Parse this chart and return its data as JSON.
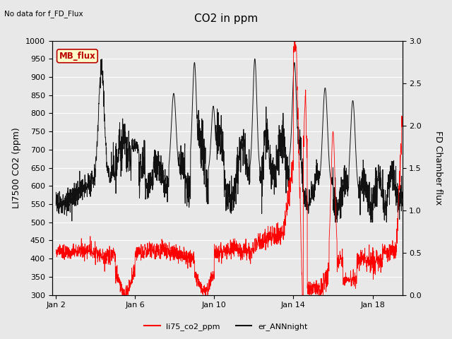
{
  "title": "CO2 in ppm",
  "top_left_text": "No data for f_FD_Flux",
  "ylabel_left": "LI7500 CO2 (ppm)",
  "ylabel_right": "FD Chamber flux",
  "ylim_left": [
    300,
    1000
  ],
  "ylim_right": [
    0.0,
    3.0
  ],
  "yticks_left": [
    300,
    350,
    400,
    450,
    500,
    550,
    600,
    650,
    700,
    750,
    800,
    850,
    900,
    950,
    1000
  ],
  "yticks_right": [
    0.0,
    0.5,
    1.0,
    1.5,
    2.0,
    2.5,
    3.0
  ],
  "xtick_labels": [
    "Jan 2",
    "Jan 6",
    "Jan 10",
    "Jan 14",
    "Jan 18"
  ],
  "xtick_positions": [
    0,
    4,
    8,
    12,
    16
  ],
  "xlim": [
    -0.2,
    17.5
  ],
  "color_red": "#ff0000",
  "color_black": "#111111",
  "legend_labels": [
    "li75_co2_ppm",
    "er_ANNnight"
  ],
  "legend_colors": [
    "#ff0000",
    "#111111"
  ],
  "mb_flux_box_color": "#ffffcc",
  "mb_flux_text_color": "#bb0000",
  "mb_flux_border_color": "#bb0000",
  "fig_bg_color": "#e8e8e8",
  "plot_bg_color": "#e8e8e8",
  "grid_color": "#ffffff",
  "title_fontsize": 11,
  "axis_fontsize": 9,
  "tick_fontsize": 8,
  "legend_fontsize": 8
}
